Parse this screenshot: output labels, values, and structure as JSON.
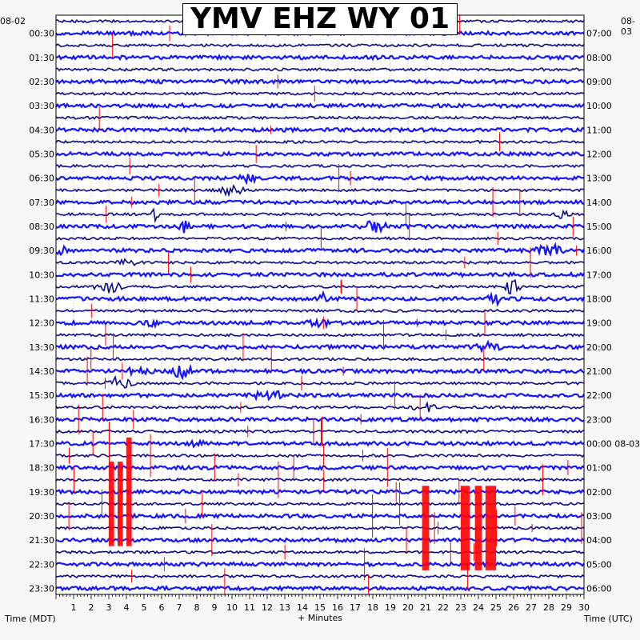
{
  "chart_data": {
    "type": "line",
    "title": "YMV EHZ WY 01",
    "left_date": "08-02",
    "right_date": "08-03",
    "xlabel": "+ Minutes",
    "left_axis_label": "Time (MDT)",
    "right_axis_label": "Time (UTC)",
    "xlim": [
      0,
      30
    ],
    "x_ticks": [
      "1",
      "2",
      "3",
      "4",
      "5",
      "6",
      "7",
      "8",
      "9",
      "10",
      "11",
      "12",
      "13",
      "14",
      "15",
      "16",
      "17",
      "18",
      "19",
      "20",
      "21",
      "22",
      "23",
      "24",
      "25",
      "26",
      "27",
      "28",
      "29",
      "30"
    ],
    "left_time_labels": [
      "00:30",
      "01:30",
      "02:30",
      "03:30",
      "04:30",
      "05:30",
      "06:30",
      "07:30",
      "08:30",
      "09:30",
      "10:30",
      "11:30",
      "12:30",
      "13:30",
      "14:30",
      "15:30",
      "16:30",
      "17:30",
      "18:30",
      "19:30",
      "20:30",
      "21:30",
      "22:30",
      "23:30"
    ],
    "right_time_labels": [
      "07:00",
      "08:00",
      "09:00",
      "10:00",
      "11:00",
      "12:00",
      "13:00",
      "14:00",
      "15:00",
      "16:00",
      "17:00",
      "18:00",
      "19:00",
      "20:00",
      "21:00",
      "22:00",
      "23:00",
      "00:00 08-03",
      "01:00",
      "02:00",
      "03:00",
      "04:00",
      "05:00",
      "06:00"
    ],
    "trace_count": 48,
    "minutes_per_trace": 30,
    "trace_colors": [
      "#0a0a8c",
      "#1515ff"
    ],
    "spike_color": "#ff0000",
    "grid": true
  }
}
